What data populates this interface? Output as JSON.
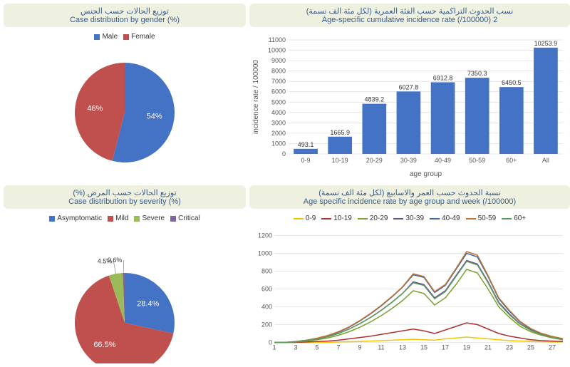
{
  "gender_pie": {
    "title_ar": "توزيع الحالات حسب الجنس",
    "title_en": "Case distribution by gender (%)",
    "slices": [
      {
        "label": "Male",
        "value": 54,
        "color": "#4472c4",
        "display": "54%"
      },
      {
        "label": "Female",
        "value": 46,
        "color": "#c0504d",
        "display": "46%"
      }
    ],
    "legend_squares": [
      "#4472c4",
      "#c0504d"
    ]
  },
  "incidence_bar": {
    "title_ar": "نسب الحدوث التراكمية حسب الفئة العمرية (لكل مئة الف نسمة)",
    "title_en": "Age-specific cumulative incidence rate (/100000) 2",
    "categories": [
      "0-9",
      "10-19",
      "20-29",
      "30-39",
      "40-49",
      "50-59",
      "60+",
      "All"
    ],
    "values": [
      493.1,
      1665.9,
      4839.2,
      6027.8,
      6912.8,
      7350.3,
      6450.5,
      10253.9
    ],
    "bar_color": "#4472c4",
    "ylim": [
      0,
      11000
    ],
    "ytick_step": 1000,
    "ylabel": "incidence rate / 100000",
    "xlabel": "age group",
    "grid_color": "#d0d0d0"
  },
  "severity_pie": {
    "title_ar": "توزيع الحالات حسب المرض (%)",
    "title_en": "Case distribution by severity (%)",
    "slices": [
      {
        "label": "Asymptomatic",
        "value": 28.4,
        "color": "#4472c4",
        "display": "28.4%"
      },
      {
        "label": "Mild",
        "value": 66.5,
        "color": "#c0504d",
        "display": "66.5%"
      },
      {
        "label": "Severe",
        "value": 4.5,
        "color": "#9bbb59",
        "display": "4.5%"
      },
      {
        "label": "Critical",
        "value": 0.6,
        "color": "#8064a2",
        "display": "0.6%"
      }
    ],
    "legend_squares": [
      "#4472c4",
      "#c0504d",
      "#9bbb59",
      "#8064a2"
    ]
  },
  "weekly_lines": {
    "title_ar": "نسبة الحدوث حسب العمر والاسابيع (لكل مئة الف نسمة)",
    "title_en": "Age specific incidence rate by age group and week (/100000)",
    "series": [
      {
        "name": "0-9",
        "color": "#f2c600",
        "data": [
          0,
          0,
          0,
          0,
          0,
          0,
          5,
          8,
          10,
          15,
          20,
          25,
          30,
          35,
          30,
          25,
          40,
          50,
          60,
          50,
          40,
          30,
          20,
          15,
          10,
          8,
          5,
          5
        ]
      },
      {
        "name": "10-19",
        "color": "#b03030",
        "data": [
          0,
          0,
          0,
          5,
          10,
          15,
          25,
          40,
          55,
          70,
          90,
          110,
          130,
          150,
          130,
          100,
          140,
          180,
          220,
          200,
          150,
          100,
          70,
          50,
          30,
          20,
          15,
          10
        ]
      },
      {
        "name": "20-29",
        "color": "#7aa030",
        "data": [
          0,
          0,
          5,
          15,
          30,
          50,
          80,
          120,
          170,
          230,
          300,
          380,
          470,
          580,
          550,
          420,
          500,
          650,
          820,
          780,
          600,
          400,
          280,
          180,
          120,
          80,
          50,
          30
        ]
      },
      {
        "name": "30-39",
        "color": "#6a4a9a",
        "data": [
          0,
          0,
          8,
          20,
          40,
          65,
          100,
          150,
          210,
          280,
          360,
          450,
          550,
          680,
          650,
          500,
          580,
          750,
          920,
          880,
          680,
          450,
          320,
          210,
          140,
          90,
          60,
          35
        ]
      },
      {
        "name": "40-49",
        "color": "#3a6aa8",
        "data": [
          0,
          0,
          10,
          25,
          45,
          75,
          115,
          170,
          240,
          320,
          410,
          510,
          620,
          760,
          730,
          560,
          640,
          820,
          1000,
          960,
          740,
          490,
          350,
          230,
          150,
          100,
          65,
          40
        ]
      },
      {
        "name": "50-59",
        "color": "#c07030",
        "data": [
          0,
          0,
          10,
          25,
          48,
          78,
          120,
          175,
          245,
          325,
          415,
          515,
          625,
          770,
          740,
          570,
          650,
          830,
          1020,
          980,
          750,
          500,
          360,
          235,
          155,
          102,
          67,
          42
        ]
      },
      {
        "name": "60+",
        "color": "#5a9a5a",
        "data": [
          0,
          0,
          8,
          20,
          40,
          65,
          100,
          150,
          210,
          280,
          360,
          450,
          550,
          670,
          640,
          490,
          570,
          740,
          910,
          870,
          670,
          440,
          310,
          205,
          135,
          88,
          58,
          35
        ]
      }
    ],
    "weeks": 28,
    "ylim": [
      0,
      1200
    ],
    "ytick_step": 200,
    "grid_color": "#d0d0d0"
  }
}
